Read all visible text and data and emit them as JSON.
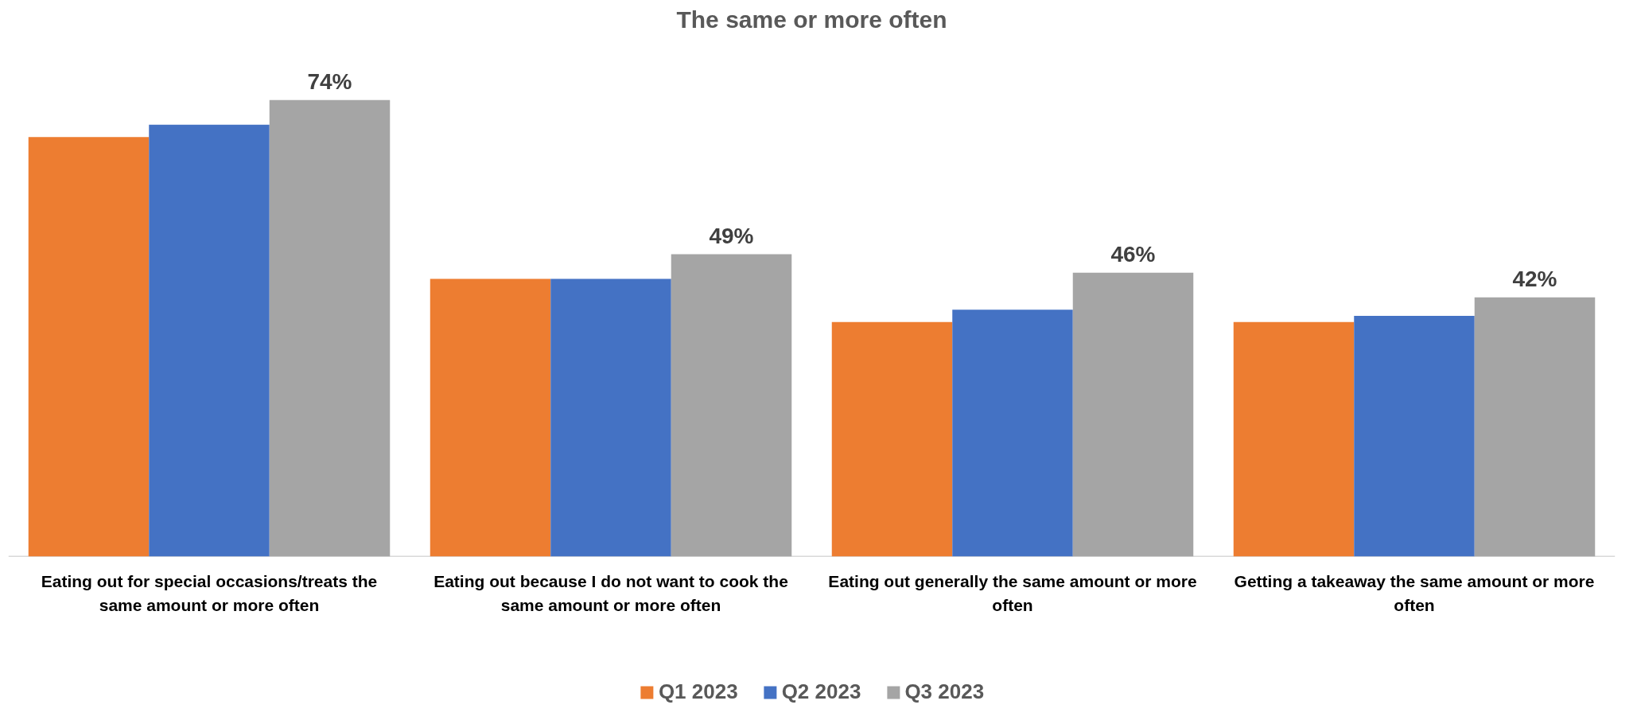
{
  "chart_data": {
    "type": "bar",
    "title": "The same or more often",
    "categories": [
      "Eating out for special occasions/treats the same amount or more often",
      "Eating out because I do not want to cook the same amount or more often",
      "Eating out generally the same amount or more often",
      "Getting a takeaway the same amount or more often"
    ],
    "series": [
      {
        "name": "Q1 2023",
        "color": "#ed7d31",
        "values": [
          68,
          45,
          38,
          38
        ]
      },
      {
        "name": "Q2 2023",
        "color": "#4472c4",
        "values": [
          70,
          45,
          40,
          39
        ]
      },
      {
        "name": "Q3 2023",
        "color": "#a5a5a5",
        "values": [
          74,
          49,
          46,
          42
        ],
        "value_labels": [
          "74%",
          "49%",
          "46%",
          "42%"
        ]
      }
    ],
    "legend": "bottom",
    "grid": false
  }
}
